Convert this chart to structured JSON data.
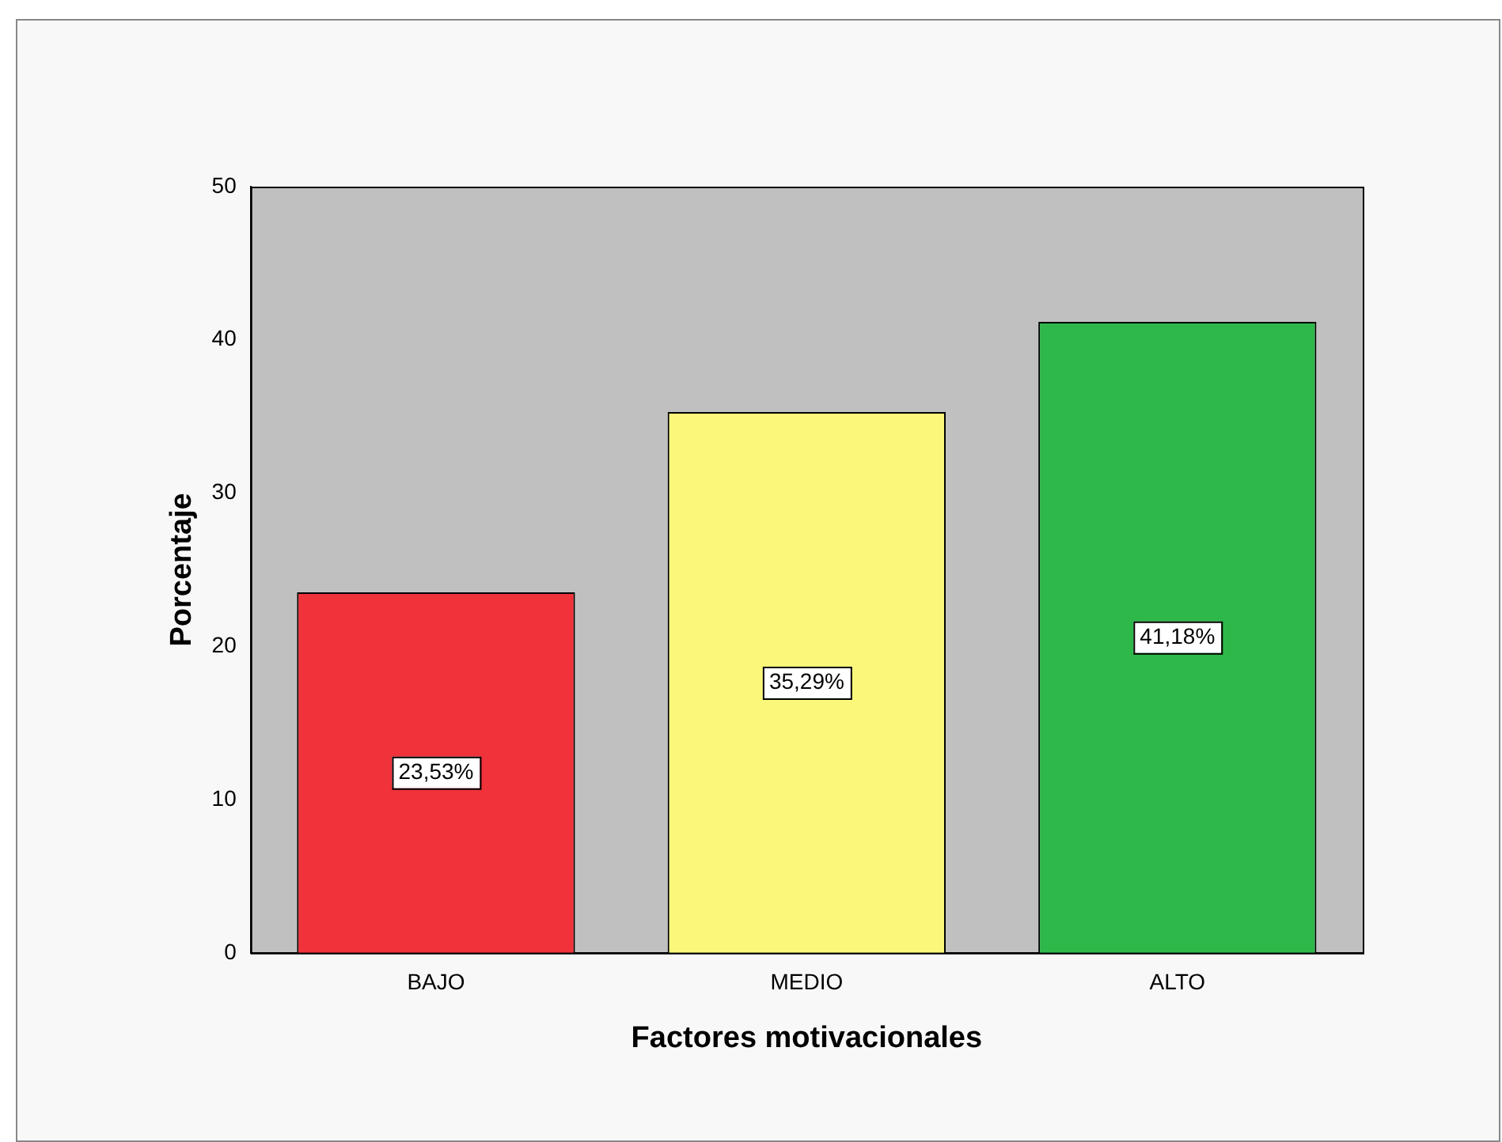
{
  "chart_data": {
    "type": "bar",
    "xlabel": "Factores motivacionales",
    "ylabel": "Porcentaje",
    "categories": [
      "BAJO",
      "MEDIO",
      "ALTO"
    ],
    "values": [
      23.53,
      35.29,
      41.18
    ],
    "colors": [
      "#f0323a",
      "#fbf77a",
      "#2fb84a"
    ],
    "value_labels": [
      "23,53%",
      "35,29%",
      "41,18%"
    ],
    "ylim": [
      0,
      50
    ],
    "yticks": [
      0,
      10,
      20,
      30,
      40,
      50
    ],
    "grid": false,
    "legend": false
  }
}
